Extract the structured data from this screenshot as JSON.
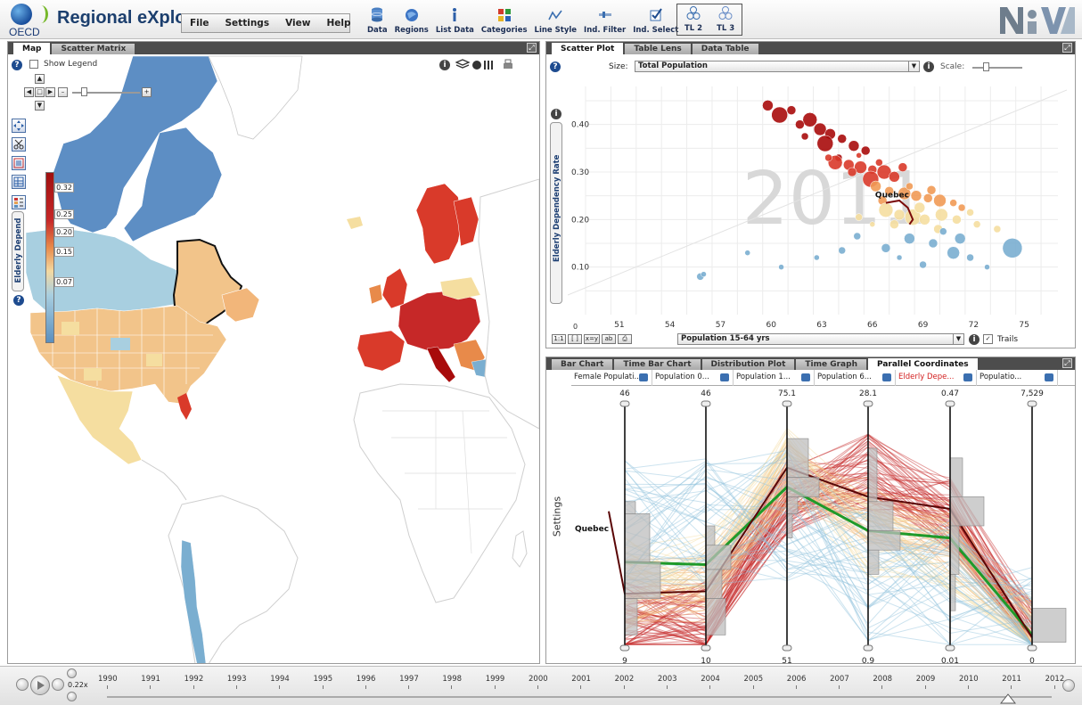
{
  "header": {
    "logo_text": "OECD",
    "title": "Regional eXplorer",
    "menu": [
      "File",
      "Settings",
      "View",
      "Help"
    ],
    "toolbar": [
      {
        "label": "Data",
        "icon": "database-icon"
      },
      {
        "label": "Regions",
        "icon": "globe-icon"
      },
      {
        "label": "List Data",
        "icon": "info-icon"
      },
      {
        "label": "Categories",
        "icon": "categories-icon"
      },
      {
        "label": "Line Style",
        "icon": "line-style-icon"
      },
      {
        "label": "Ind. Filter",
        "icon": "filter-icon"
      },
      {
        "label": "Ind. Select",
        "icon": "checkbox-icon"
      }
    ],
    "tl_buttons": [
      {
        "label": "TL 2"
      },
      {
        "label": "TL 3"
      }
    ],
    "brand": "NComVA"
  },
  "map_panel": {
    "tabs": [
      "Map",
      "Scatter Matrix"
    ],
    "active_tab": "Map",
    "show_legend_label": "Show Legend",
    "legend_labels": [
      "0.32",
      "0.25",
      "0.20",
      "0.15",
      "0.07"
    ],
    "indicator_label": "Elderly Depend",
    "highlight_region": "Quebec"
  },
  "scatter_panel": {
    "tabs": [
      "Scatter Plot",
      "Table Lens",
      "Data Table"
    ],
    "active_tab": "Scatter Plot",
    "size_label": "Size:",
    "size_value": "Total Population",
    "scale_label": "Scale:",
    "x_axis_select": "Population 15-64 yrs",
    "trails_label": "Trails",
    "zoom_buttons": [
      "1:1",
      "[ ]",
      "x=y",
      "ab"
    ],
    "year_watermark": "2011"
  },
  "chart_data": {
    "type": "scatter",
    "ylabel": "Elderly Dependency Rate",
    "xlabel": "Population 15-64 yrs",
    "x_ticks": [
      51,
      54,
      57,
      60,
      63,
      66,
      69,
      72,
      75
    ],
    "y_ticks": [
      0.1,
      0.2,
      0.3,
      0.4
    ],
    "xlim": [
      49,
      77
    ],
    "ylim": [
      0,
      0.48
    ],
    "grid": true,
    "annotation": "Quebec",
    "series": [
      {
        "color": "#a80b0b",
        "points": [
          [
            59.8,
            0.44,
            6
          ],
          [
            61.2,
            0.43,
            5
          ],
          [
            60.5,
            0.42,
            9
          ],
          [
            62.3,
            0.41,
            8
          ],
          [
            61.7,
            0.4,
            5
          ],
          [
            62.9,
            0.39,
            7
          ],
          [
            63.5,
            0.38,
            6
          ],
          [
            64.2,
            0.37,
            5
          ],
          [
            63.2,
            0.36,
            9
          ],
          [
            64.9,
            0.355,
            6
          ],
          [
            65.6,
            0.345,
            5
          ],
          [
            62.0,
            0.375,
            4
          ],
          [
            64.0,
            0.33,
            4
          ]
        ]
      },
      {
        "color": "#d93a2a",
        "points": [
          [
            63.8,
            0.32,
            8
          ],
          [
            64.6,
            0.315,
            6
          ],
          [
            65.3,
            0.31,
            7
          ],
          [
            66.0,
            0.305,
            5
          ],
          [
            66.7,
            0.3,
            8
          ],
          [
            67.3,
            0.29,
            6
          ],
          [
            65.9,
            0.285,
            9
          ],
          [
            64.8,
            0.3,
            5
          ],
          [
            66.4,
            0.32,
            4
          ],
          [
            67.8,
            0.31,
            5
          ],
          [
            63.4,
            0.33,
            4
          ],
          [
            65.2,
            0.335,
            3
          ]
        ]
      },
      {
        "color": "#f19a55",
        "points": [
          [
            66.2,
            0.27,
            6
          ],
          [
            67.0,
            0.26,
            5
          ],
          [
            67.9,
            0.255,
            7
          ],
          [
            68.6,
            0.25,
            6
          ],
          [
            69.3,
            0.245,
            5
          ],
          [
            70.0,
            0.24,
            7
          ],
          [
            70.8,
            0.235,
            4
          ],
          [
            66.6,
            0.24,
            5
          ],
          [
            68.2,
            0.27,
            4
          ],
          [
            71.3,
            0.225,
            4
          ],
          [
            69.5,
            0.262,
            5
          ]
        ]
      },
      {
        "color": "#f5deA0",
        "points": [
          [
            66.8,
            0.22,
            8
          ],
          [
            67.6,
            0.21,
            6
          ],
          [
            68.4,
            0.205,
            9
          ],
          [
            69.1,
            0.2,
            6
          ],
          [
            70.1,
            0.21,
            7
          ],
          [
            71.0,
            0.2,
            5
          ],
          [
            72.2,
            0.19,
            4
          ],
          [
            67.3,
            0.19,
            5
          ],
          [
            69.9,
            0.18,
            5
          ],
          [
            65.2,
            0.205,
            4
          ],
          [
            68.8,
            0.225,
            6
          ],
          [
            71.8,
            0.215,
            4
          ],
          [
            73.4,
            0.18,
            4
          ],
          [
            66.0,
            0.19,
            3
          ]
        ]
      },
      {
        "color": "#7aaed0",
        "points": [
          [
            55.8,
            0.08,
            4
          ],
          [
            56.0,
            0.085,
            3
          ],
          [
            58.6,
            0.13,
            3
          ],
          [
            60.6,
            0.1,
            3
          ],
          [
            62.7,
            0.12,
            3
          ],
          [
            64.2,
            0.135,
            4
          ],
          [
            65.1,
            0.165,
            4
          ],
          [
            66.8,
            0.14,
            5
          ],
          [
            68.2,
            0.16,
            6
          ],
          [
            69.6,
            0.15,
            5
          ],
          [
            70.8,
            0.13,
            7
          ],
          [
            71.8,
            0.12,
            4
          ],
          [
            72.8,
            0.1,
            3
          ],
          [
            74.3,
            0.14,
            11
          ],
          [
            70.2,
            0.175,
            4
          ],
          [
            67.6,
            0.12,
            3
          ],
          [
            69.0,
            0.105,
            4
          ],
          [
            71.2,
            0.16,
            6
          ]
        ]
      }
    ],
    "quebec_trail": [
      [
        66.8,
        0.235
      ],
      [
        67.6,
        0.24
      ],
      [
        68.1,
        0.225
      ],
      [
        68.4,
        0.2
      ],
      [
        68.2,
        0.19
      ]
    ]
  },
  "parallel_panel": {
    "tabs": [
      "Bar Chart",
      "Time Bar Chart",
      "Distribution Plot",
      "Time Graph",
      "Parallel Coordinates"
    ],
    "active_tab": "Parallel Coordinates",
    "settings_label": "Settings",
    "highlight_label": "Quebec",
    "columns": [
      {
        "label": "Female Populati...",
        "max": "46",
        "min": "9"
      },
      {
        "label": "Population 0...",
        "max": "46",
        "min": "10"
      },
      {
        "label": "Population 1...",
        "max": "75.1",
        "min": "51"
      },
      {
        "label": "Population 6...",
        "max": "28.1",
        "min": "0.9"
      },
      {
        "label": "Elderly Depe...",
        "max": "0.47",
        "min": "0.01"
      },
      {
        "label": "Populatio...",
        "max": "7,529",
        "min": "0"
      }
    ],
    "quebec_values": [
      0.22,
      0.23,
      0.74,
      0.62,
      0.57,
      0.04
    ],
    "mean_values": [
      0.35,
      0.34,
      0.66,
      0.48,
      0.45,
      0.05
    ]
  },
  "timeline": {
    "speed": "0.22x",
    "years": [
      "1990",
      "1991",
      "1992",
      "1993",
      "1994",
      "1995",
      "1996",
      "1997",
      "1998",
      "1999",
      "2000",
      "2001",
      "2002",
      "2003",
      "2004",
      "2005",
      "2006",
      "2007",
      "2008",
      "2009",
      "2010",
      "2011",
      "2012"
    ],
    "selected_year": "2011"
  }
}
